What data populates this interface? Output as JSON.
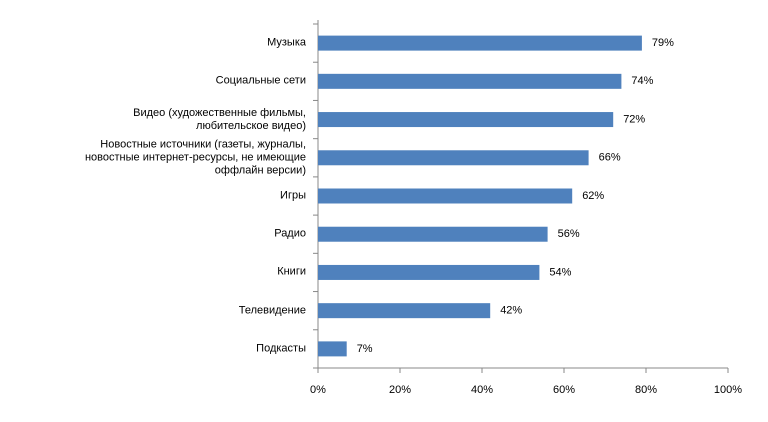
{
  "chart_data": {
    "type": "bar",
    "orientation": "horizontal",
    "categories": [
      "Музыка",
      "Социальные сети",
      "Видео (художественные фильмы, любительское видео)",
      "Новостные источники (газеты, журналы, новостные интернет-ресурсы, не имеющие оффлайн версии)",
      "Игры",
      "Радио",
      "Книги",
      "Телевидение",
      "Подкасты"
    ],
    "values": [
      79,
      74,
      72,
      66,
      62,
      56,
      54,
      42,
      7
    ],
    "value_labels": [
      "79%",
      "74%",
      "72%",
      "66%",
      "62%",
      "56%",
      "54%",
      "42%",
      "7%"
    ],
    "color": "#4f81bd",
    "xlim": [
      0,
      100
    ],
    "xticks": [
      {
        "value": 0,
        "label": "0%"
      },
      {
        "value": 20,
        "label": "20%"
      },
      {
        "value": 40,
        "label": "40%"
      },
      {
        "value": 60,
        "label": "60%"
      },
      {
        "value": 80,
        "label": "80%"
      },
      {
        "value": 100,
        "label": "100%"
      }
    ],
    "grid": false
  }
}
